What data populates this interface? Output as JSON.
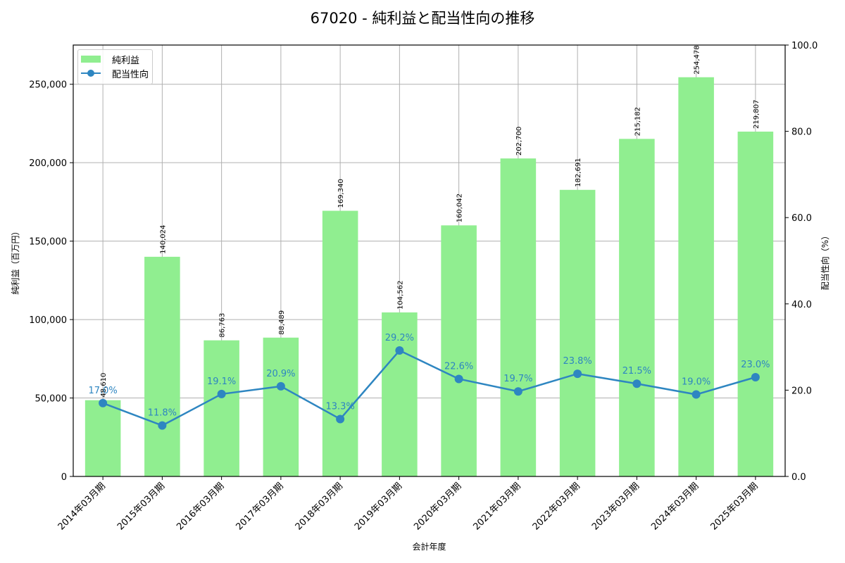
{
  "title": "67020 - 純利益と配当性向の推移",
  "legend": {
    "bar_label": "純利益",
    "line_label": "配当性向"
  },
  "colors": {
    "bar": "#90ee90",
    "line": "#2e86c1",
    "grid": "#b0b0b0"
  },
  "chart_data": {
    "type": "bar+line",
    "title": "67020 - 純利益と配当性向の推移",
    "xlabel": "会計年度",
    "ylabel": "純利益（百万円）",
    "y2label": "配当性向（%）",
    "categories": [
      "2014年03月期",
      "2015年03月期",
      "2016年03月期",
      "2017年03月期",
      "2018年03月期",
      "2019年03月期",
      "2020年03月期",
      "2021年03月期",
      "2022年03月期",
      "2023年03月期",
      "2024年03月期",
      "2025年03月期"
    ],
    "series": [
      {
        "name": "純利益",
        "type": "bar",
        "axis": "left",
        "values": [
          48610,
          140024,
          86763,
          88489,
          169340,
          104562,
          160042,
          202700,
          182691,
          215182,
          254478,
          219807
        ],
        "labels": [
          "48,610",
          "140,024",
          "86,763",
          "88,489",
          "169,340",
          "104,562",
          "160,042",
          "202,700",
          "182,691",
          "215,182",
          "254,478",
          "219,807"
        ]
      },
      {
        "name": "配当性向",
        "type": "line",
        "axis": "right",
        "values": [
          17.0,
          11.8,
          19.1,
          20.9,
          13.3,
          29.2,
          22.6,
          19.7,
          23.8,
          21.5,
          19.0,
          23.0
        ],
        "labels": [
          "17.0%",
          "11.8%",
          "19.1%",
          "20.9%",
          "13.3%",
          "29.2%",
          "22.6%",
          "19.7%",
          "23.8%",
          "21.5%",
          "19.0%",
          "23.0%"
        ]
      }
    ],
    "ylim": [
      0,
      275000
    ],
    "y2lim": [
      0,
      100
    ],
    "yticks": [
      "0",
      "50,000",
      "100,000",
      "150,000",
      "200,000",
      "250,000"
    ],
    "y2ticks": [
      "0.0",
      "20.0",
      "40.0",
      "60.0",
      "80.0",
      "100.0"
    ],
    "grid": true,
    "legend_position": "upper left"
  }
}
